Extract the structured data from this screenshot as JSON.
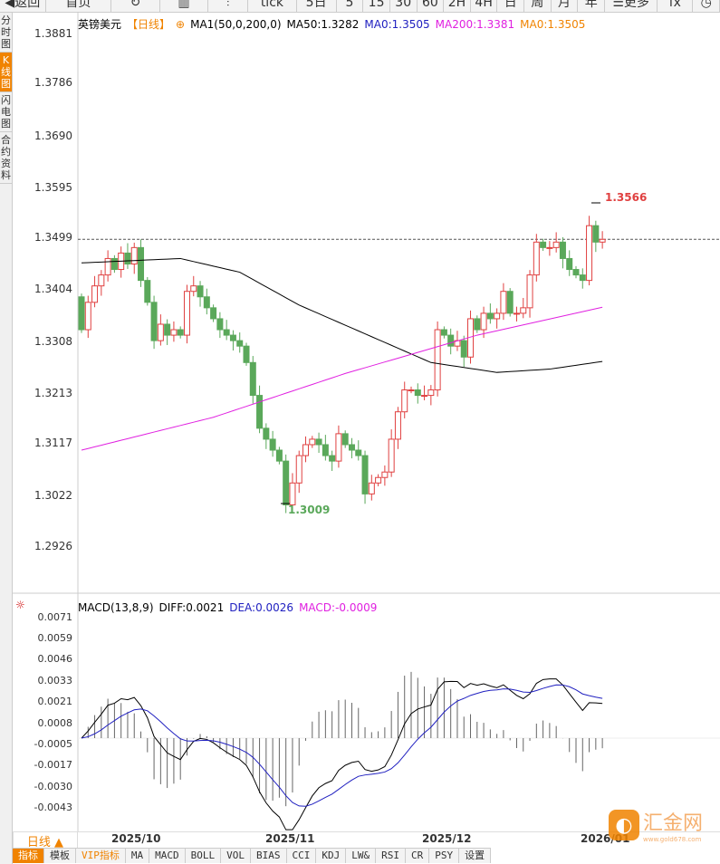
{
  "toolbar": [
    {
      "label": "◀返回"
    },
    {
      "label": "首页"
    },
    {
      "label": "↻"
    },
    {
      "label": "▥"
    },
    {
      "label": "⫶"
    },
    {
      "label": "tick"
    },
    {
      "label": "5日"
    },
    {
      "label": "5"
    },
    {
      "label": "15"
    },
    {
      "label": "30"
    },
    {
      "label": "60"
    },
    {
      "label": "2H"
    },
    {
      "label": "4H"
    },
    {
      "label": "日"
    },
    {
      "label": "周"
    },
    {
      "label": "月"
    },
    {
      "label": "年"
    },
    {
      "label": "☰更多"
    },
    {
      "label": "fx"
    },
    {
      "label": "◷"
    }
  ],
  "sidebar": [
    {
      "label": "分时图"
    },
    {
      "label": "K线图"
    },
    {
      "label": "闪电图"
    },
    {
      "label": "合约资料"
    }
  ],
  "legend": {
    "symbol": "英镑美元",
    "period": "【日线】",
    "ma": "MA1(50,0,200,0)",
    "ma50": "MA50:1.3282",
    "ma0": "MA0:1.3505",
    "ma200": "MA200:1.3381",
    "ma0b": "MA0:1.3505"
  },
  "macd_legend": {
    "name": "MACD(13,8,9)",
    "diff": "DIFF:0.0021",
    "dea": "DEA:0.0026",
    "macd": "MACD:-0.0009"
  },
  "price_ticks": [
    "1.3881",
    "1.3786",
    "1.3690",
    "1.3595",
    "1.3499",
    "1.3404",
    "1.3308",
    "1.3213",
    "1.3117",
    "1.3022",
    "1.2926"
  ],
  "macd_ticks": [
    "0.0071",
    "0.0059",
    "0.0046",
    "0.0033",
    "0.0021",
    "0.0008",
    "-0.0005",
    "-0.0017",
    "-0.0030",
    "-0.0043"
  ],
  "annotations": {
    "high": "1.3566",
    "low": "1.3009"
  },
  "x_labels": [
    "2025/10",
    "2025/11",
    "2025/12",
    "2026/01"
  ],
  "period_button": "日线 ▲",
  "tabs": [
    {
      "label": "指标"
    },
    {
      "label": "模板"
    },
    {
      "label": "VIP指标"
    },
    {
      "label": "MA"
    },
    {
      "label": "MACD"
    },
    {
      "label": "BOLL"
    },
    {
      "label": "VOL"
    },
    {
      "label": "BIAS"
    },
    {
      "label": "CCI"
    },
    {
      "label": "KDJ"
    },
    {
      "label": "LW&"
    },
    {
      "label": "RSI"
    },
    {
      "label": "CR"
    },
    {
      "label": "PSY"
    },
    {
      "label": "设置"
    }
  ],
  "logo": {
    "text": "汇金网",
    "url": "www.gold678.com"
  },
  "colors": {
    "up": "#e04040",
    "down": "#5aa85a",
    "ma50": "#000000",
    "ma200": "#e020e0",
    "accent": "#f08300"
  },
  "chart_data": {
    "type": "candlestick",
    "first_open": 1.34,
    "closes": [
      1.334,
      1.339,
      1.342,
      1.344,
      1.347,
      1.345,
      1.348,
      1.346,
      1.349,
      1.343,
      1.339,
      1.332,
      1.335,
      1.333,
      1.334,
      1.333,
      1.341,
      1.342,
      1.34,
      1.338,
      1.336,
      1.334,
      1.333,
      1.332,
      1.331,
      1.328,
      1.322,
      1.316,
      1.314,
      1.312,
      1.31,
      1.302,
      1.306,
      1.311,
      1.313,
      1.314,
      1.313,
      1.311,
      1.31,
      1.315,
      1.313,
      1.312,
      1.311,
      1.304,
      1.306,
      1.307,
      1.308,
      1.314,
      1.319,
      1.323,
      1.323,
      1.322,
      1.322,
      1.323,
      1.334,
      1.333,
      1.331,
      1.332,
      1.329,
      1.336,
      1.334,
      1.337,
      1.336,
      1.337,
      1.341,
      1.337,
      1.337,
      1.338,
      1.344,
      1.35,
      1.349,
      1.349,
      1.35,
      1.347,
      1.345,
      1.344,
      1.343,
      1.353,
      1.35,
      1.3505
    ],
    "ma50_keypoints": [
      [
        0,
        1.3462
      ],
      [
        15,
        1.347
      ],
      [
        24,
        1.3445
      ],
      [
        33,
        1.3385
      ],
      [
        45,
        1.3322
      ],
      [
        53,
        1.328
      ],
      [
        63,
        1.3262
      ],
      [
        71,
        1.3268
      ],
      [
        79,
        1.3282
      ]
    ],
    "ma200_keypoints": [
      [
        0,
        1.312
      ],
      [
        20,
        1.318
      ],
      [
        40,
        1.326
      ],
      [
        60,
        1.333
      ],
      [
        79,
        1.3381
      ]
    ],
    "ylim": [
      1.29,
      1.389
    ],
    "macd_ylim": [
      -0.005,
      0.0075
    ]
  }
}
